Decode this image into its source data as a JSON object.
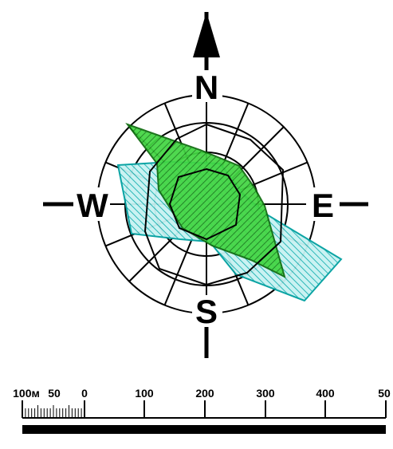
{
  "compass": {
    "north": "N",
    "south": "S",
    "east": "E",
    "west": "W"
  },
  "scale": {
    "labels": [
      "100м",
      "50",
      "0",
      "100",
      "200",
      "300",
      "400",
      "50"
    ]
  },
  "rose": {
    "series": [
      {
        "fill": "#36c836",
        "stroke": "#1f6f1f",
        "pattern": "green-hatch"
      },
      {
        "fill": "#47d4d4",
        "stroke": "#128b8b",
        "pattern": "cyan-hatch"
      }
    ]
  }
}
